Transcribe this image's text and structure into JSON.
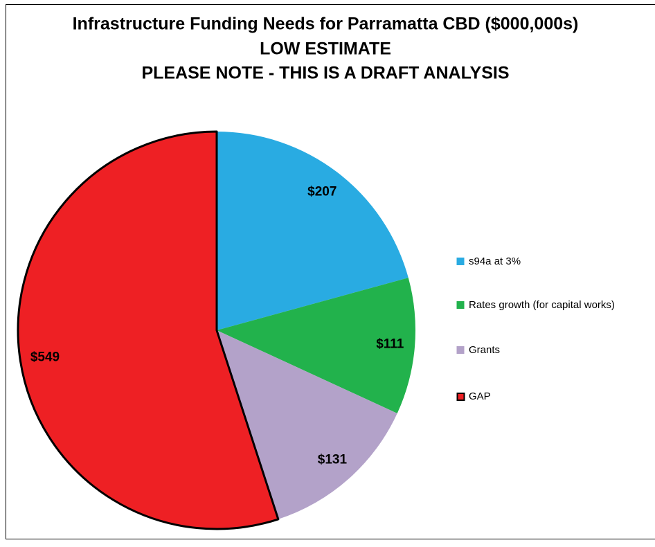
{
  "chart_data": {
    "type": "pie",
    "title": "Infrastructure Funding Needs for Parramatta CBD ($000,000s)",
    "subtitle": [
      "LOW ESTIMATE",
      "PLEASE NOTE - THIS IS A DRAFT ANALYSIS"
    ],
    "categories": [
      "s94a at 3%",
      "Rates growth (for capital works)",
      "Grants",
      "GAP"
    ],
    "values": [
      207,
      111,
      131,
      549
    ],
    "value_labels": [
      "$207",
      "$111",
      "$131",
      "$549"
    ],
    "colors": [
      "#29abe2",
      "#22b24c",
      "#b3a2c9",
      "#ee2024"
    ],
    "edgecolors": [
      null,
      null,
      null,
      "#000000"
    ],
    "legend": "right"
  }
}
